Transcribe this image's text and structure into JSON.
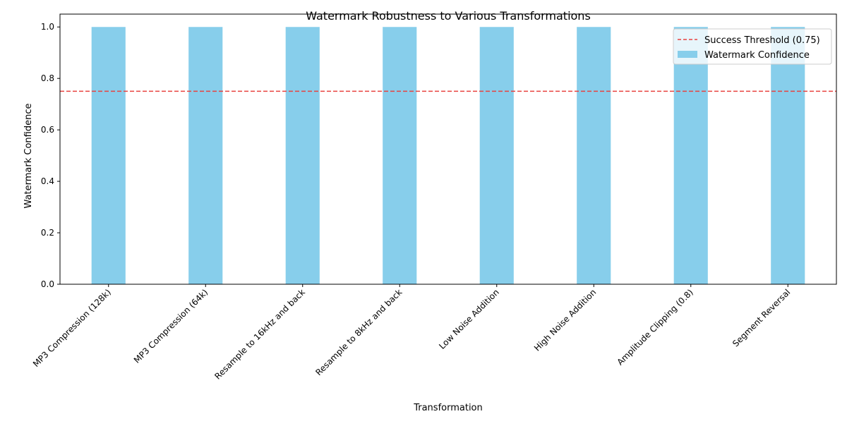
{
  "chart_data": {
    "type": "bar",
    "title": "Watermark Robustness to Various Transformations",
    "xlabel": "Transformation",
    "ylabel": "Watermark Confidence",
    "ylim": [
      0,
      1.05
    ],
    "yticks": [
      "0.0",
      "0.2",
      "0.4",
      "0.6",
      "0.8",
      "1.0"
    ],
    "ytick_values": [
      0,
      0.2,
      0.4,
      0.6,
      0.8,
      1.0
    ],
    "categories": [
      "MP3 Compression (128k)",
      "MP3 Compression (64k)",
      "Resample to 16kHz and back",
      "Resample to 8kHz and back",
      "Low Noise Addition",
      "High Noise Addition",
      "Amplitude Clipping (0.8)",
      "Segment Reversal"
    ],
    "series": [
      {
        "name": "Watermark Confidence",
        "values": [
          1.0,
          1.0,
          1.0,
          1.0,
          1.0,
          1.0,
          1.0,
          1.0
        ],
        "color": "#87ceeb"
      }
    ],
    "threshold": {
      "name": "Success Threshold (0.75)",
      "value": 0.75,
      "color": "#e8413f",
      "style": "dashed"
    },
    "legend_position": "top-right",
    "grid": false
  }
}
